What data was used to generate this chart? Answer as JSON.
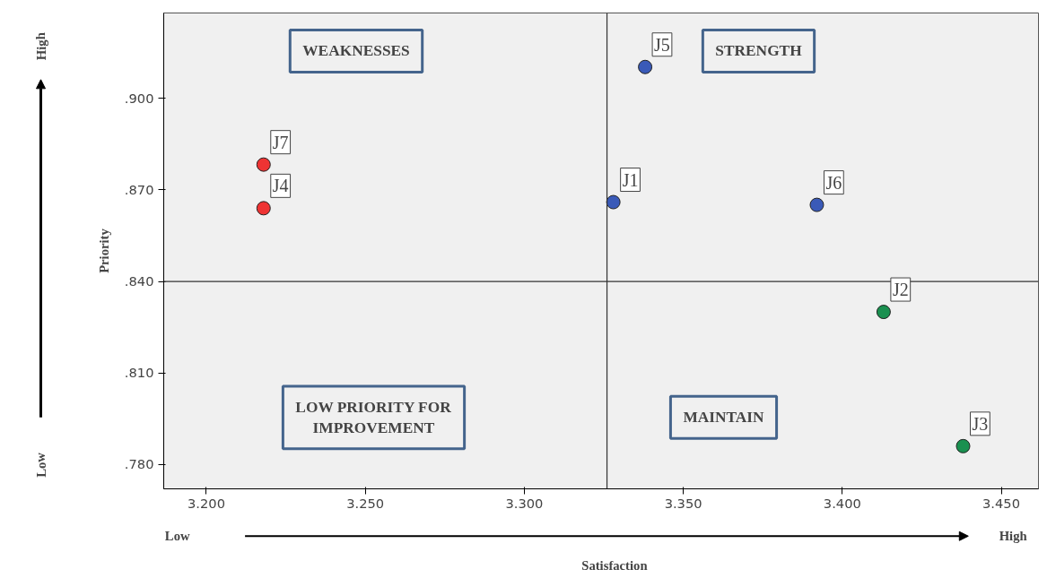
{
  "chart_data": {
    "type": "scatter",
    "xlabel": "Satisfaction",
    "ylabel": "Priority",
    "xlim": [
      3.1866,
      3.4617
    ],
    "ylim": [
      0.772,
      0.928
    ],
    "xticks": [
      {
        "value": 3.2,
        "label": "3.200"
      },
      {
        "value": 3.25,
        "label": "3.250"
      },
      {
        "value": 3.3,
        "label": "3.300"
      },
      {
        "value": 3.35,
        "label": "3.350"
      },
      {
        "value": 3.4,
        "label": "3.400"
      },
      {
        "value": 3.45,
        "label": "3.450"
      }
    ],
    "yticks": [
      {
        "value": 0.78,
        "label": ".780"
      },
      {
        "value": 0.81,
        "label": ".810"
      },
      {
        "value": 0.84,
        "label": ".840"
      },
      {
        "value": 0.87,
        "label": ".870"
      },
      {
        "value": 0.9,
        "label": ".900"
      }
    ],
    "marker": "circle",
    "grid": false,
    "series": [
      {
        "color": "#ee3333",
        "x": [
          3.218,
          3.218
        ],
        "values": [
          0.8783,
          0.864
        ]
      },
      {
        "color": "#3a5ab8",
        "x": [
          3.328,
          3.338,
          3.392
        ],
        "values": [
          0.866,
          0.9103,
          0.8651
        ]
      },
      {
        "color": "#1a9050",
        "x": [
          3.413,
          3.438
        ],
        "values": [
          0.83,
          0.786
        ]
      }
    ],
    "ref_lines": [
      {
        "axis": "x",
        "value": 3.326
      },
      {
        "axis": "y",
        "value": 0.84
      }
    ],
    "annotations": [
      {
        "text": "J7",
        "x": 3.218,
        "y": 0.8783
      },
      {
        "text": "J4",
        "x": 3.218,
        "y": 0.864
      },
      {
        "text": "J1",
        "x": 3.328,
        "y": 0.866
      },
      {
        "text": "J5",
        "x": 3.338,
        "y": 0.9103
      },
      {
        "text": "J6",
        "x": 3.392,
        "y": 0.8651
      },
      {
        "text": "J2",
        "x": 3.413,
        "y": 0.83
      },
      {
        "text": "J3",
        "x": 3.438,
        "y": 0.786
      },
      "WEAKNESSES",
      "STRENGTH",
      "LOW PRIORITY FOR\nIMPROVEMENT",
      "MAINTAIN",
      "Low",
      "High",
      "Low",
      "High"
    ]
  }
}
